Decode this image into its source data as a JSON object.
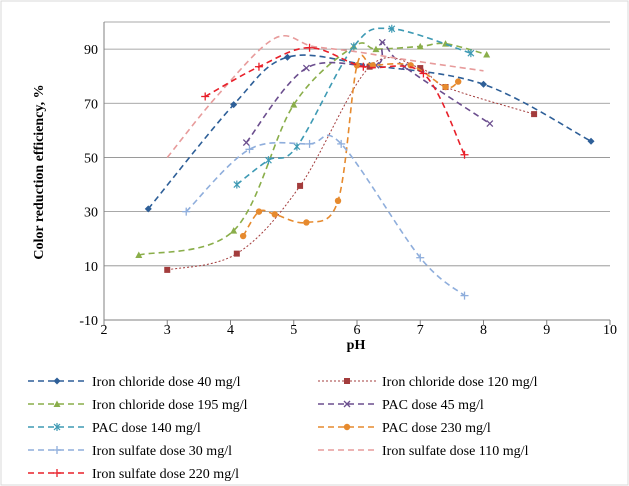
{
  "chart_data": {
    "type": "line",
    "title": "",
    "xlabel": "pH",
    "ylabel": "Color reduction efficiency, %",
    "xlim": [
      2,
      10
    ],
    "ylim": [
      -10,
      100
    ],
    "xticks": [
      "2",
      "3",
      "4",
      "5",
      "6",
      "7",
      "8",
      "9",
      "10"
    ],
    "yticks": [
      "-10",
      "10",
      "30",
      "50",
      "70",
      "90"
    ],
    "grid": "horizontal",
    "legend_position": "bottom",
    "series": [
      {
        "name": "Iron chloride dose 40 mg/l",
        "color": "#2E5F98",
        "marker": "diamond",
        "dash": "dashed",
        "x": [
          2.7,
          4.05,
          4.9,
          6.2,
          8.0,
          9.7
        ],
        "y": [
          31,
          69.5,
          87,
          84,
          77,
          56
        ]
      },
      {
        "name": "Iron chloride dose 120 mg/l",
        "color": "#A33C3C",
        "marker": "square",
        "dash": "dotted",
        "x": [
          3.0,
          4.1,
          5.1,
          6.2,
          7.0,
          7.4,
          8.8
        ],
        "y": [
          8.5,
          14.5,
          39.5,
          83.5,
          83,
          76,
          66
        ]
      },
      {
        "name": "Iron chloride dose 195 mg/l",
        "color": "#8AAE4A",
        "marker": "triangle",
        "dash": "dashed",
        "x": [
          2.55,
          4.05,
          5.0,
          5.95,
          6.3,
          7.0,
          7.4,
          8.05
        ],
        "y": [
          14,
          23,
          69.5,
          91,
          90,
          91,
          92,
          88
        ]
      },
      {
        "name": "PAC dose 45 mg/l",
        "color": "#6B4E8E",
        "marker": "x",
        "dash": "dashed",
        "x": [
          4.25,
          5.2,
          6.3,
          6.4,
          6.75,
          8.1
        ],
        "y": [
          55.5,
          83,
          84,
          92.5,
          83.5,
          62.5
        ]
      },
      {
        "name": "PAC dose 140 mg/l",
        "color": "#3E9AB4",
        "marker": "star",
        "dash": "dashed",
        "x": [
          4.1,
          4.6,
          5.05,
          5.95,
          6.55,
          7.8
        ],
        "y": [
          40,
          49,
          54,
          91,
          97.5,
          88.5
        ]
      },
      {
        "name": "PAC dose 230 mg/l",
        "color": "#E68A2E",
        "marker": "circle",
        "dash": "dashed",
        "x": [
          4.2,
          4.45,
          4.7,
          5.2,
          5.7,
          6.0,
          6.25,
          6.85,
          7.4,
          7.6
        ],
        "y": [
          21,
          30,
          29,
          26,
          34,
          84,
          84,
          84,
          76,
          78
        ]
      },
      {
        "name": "Iron sulfate dose 30 mg/l",
        "color": "#8FAEDC",
        "marker": "plus",
        "dash": "dashed",
        "x": [
          3.3,
          4.3,
          5.25,
          5.75,
          7.0,
          7.7
        ],
        "y": [
          30,
          53,
          55,
          55,
          13,
          -1
        ]
      },
      {
        "name": "Iron sulfate dose 110 mg/l",
        "color": "#E79B9B",
        "marker": "none",
        "dash": "dashed",
        "x": [
          3.0,
          3.8,
          4.7,
          5.3,
          6.0,
          6.8,
          8.0
        ],
        "y": [
          50,
          73,
          94,
          91,
          89,
          86,
          82
        ]
      },
      {
        "name": "Iron sulfate dose 220 mg/l",
        "color": "#E8202A",
        "marker": "plus",
        "dash": "dashed",
        "x": [
          3.6,
          4.45,
          5.25,
          6.1,
          7.05,
          7.7
        ],
        "y": [
          72.5,
          83.5,
          90.5,
          83.5,
          81,
          51
        ]
      }
    ]
  }
}
